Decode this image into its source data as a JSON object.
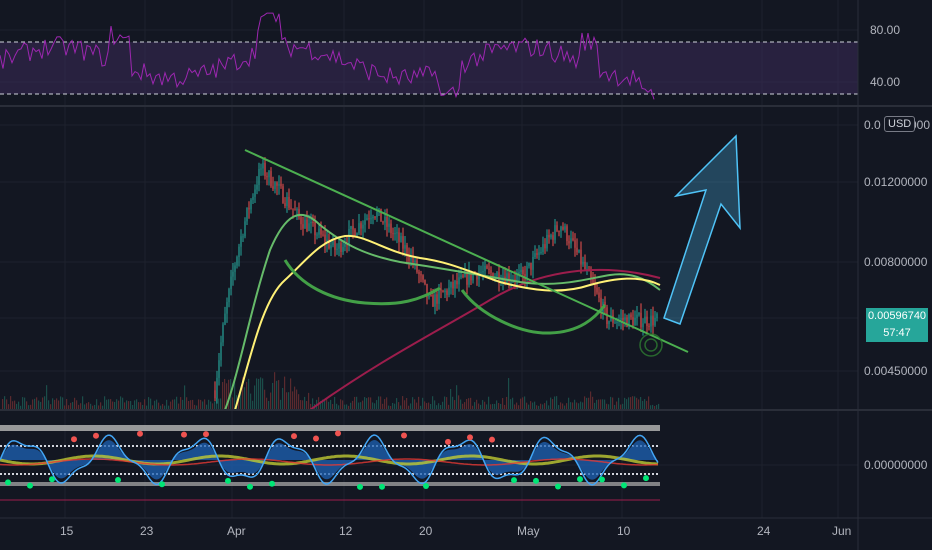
{
  "colors": {
    "background": "#131722",
    "grid": "#1e222d",
    "divider": "#2a2e39",
    "rsi_line": "#9c27b0",
    "rsi_band": "#3b2a57",
    "trendline": "#4caf50",
    "ma_yellow": "#fff176",
    "ma_green": "#66bb6a",
    "ma_maroon": "#9c1d4c",
    "arc": "#43a047",
    "arrow": "#4fc3f7",
    "candle_up": "#26a69a",
    "candle_down": "#ef5350",
    "osc_blue": "#42a5f5",
    "osc_fill": "#1e63b5",
    "price_tag": "#26a69a"
  },
  "rsi_panel": {
    "ticks": [
      "80.00",
      "40.00"
    ],
    "levels": [
      70,
      30
    ]
  },
  "price_panel": {
    "ticks": [
      "0.01200000",
      "0.00800000",
      "0.00450000"
    ],
    "top_tick_partial": "0.0",
    "top_tick_partial_tail": "000",
    "currency": "USD",
    "last_price": "0.00596740",
    "countdown": "57:47"
  },
  "oscillator_panel": {
    "ticks": [
      "0.00000000"
    ]
  },
  "time_axis": {
    "labels": [
      "15",
      "23",
      "Apr",
      "12",
      "20",
      "May",
      "10",
      "24",
      "Jun"
    ]
  },
  "chart_data": {
    "type": "candlestick",
    "timeframe_note": "",
    "x_labels": [
      "15",
      "23",
      "Apr",
      "12",
      "20",
      "May",
      "10",
      "24",
      "Jun"
    ],
    "price_series_key_points": [
      {
        "x": "Mar 31",
        "y": 0.0041
      },
      {
        "x": "Apr 5",
        "y": 0.0129
      },
      {
        "x": "Apr 9",
        "y": 0.01
      },
      {
        "x": "Apr 13",
        "y": 0.0085
      },
      {
        "x": "Apr 17",
        "y": 0.0104
      },
      {
        "x": "Apr 21",
        "y": 0.0082
      },
      {
        "x": "Apr 23",
        "y": 0.0065
      },
      {
        "x": "Apr 28",
        "y": 0.0076
      },
      {
        "x": "May 3",
        "y": 0.0074
      },
      {
        "x": "May 7",
        "y": 0.0097
      },
      {
        "x": "May 10",
        "y": 0.0074
      },
      {
        "x": "May 12",
        "y": 0.0059674
      }
    ],
    "last_price": 0.0059674,
    "rsi_levels": [
      30,
      70
    ],
    "rsi_range": [
      20,
      100
    ]
  }
}
